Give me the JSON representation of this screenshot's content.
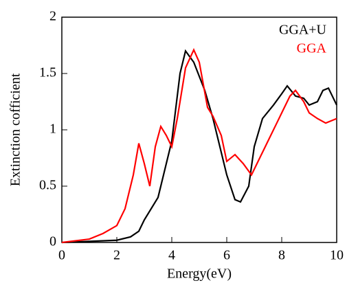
{
  "chart_data": {
    "type": "line",
    "xlabel": "Energy(eV)",
    "ylabel": "Extinction cofficient",
    "xlim": [
      0,
      10
    ],
    "ylim": [
      0,
      2
    ],
    "xticks": [
      0,
      2,
      4,
      6,
      8,
      10
    ],
    "yticks": [
      0,
      0.5,
      1,
      1.5,
      2
    ],
    "legend": "upper right",
    "series": [
      {
        "name": "GGA+U",
        "color": "#000000",
        "x": [
          0,
          1,
          2,
          2.5,
          2.8,
          3.0,
          3.5,
          4.0,
          4.3,
          4.5,
          4.8,
          5.2,
          5.5,
          6.0,
          6.3,
          6.5,
          6.8,
          7.0,
          7.3,
          7.7,
          8.0,
          8.2,
          8.5,
          8.8,
          9.0,
          9.3,
          9.5,
          9.7,
          10.0
        ],
        "values": [
          0,
          0.01,
          0.02,
          0.05,
          0.1,
          0.2,
          0.4,
          0.9,
          1.5,
          1.7,
          1.6,
          1.35,
          1.1,
          0.6,
          0.38,
          0.36,
          0.5,
          0.85,
          1.1,
          1.22,
          1.32,
          1.39,
          1.3,
          1.28,
          1.22,
          1.25,
          1.35,
          1.37,
          1.22
        ]
      },
      {
        "name": "GGA",
        "color": "#ff0000",
        "x": [
          0,
          1,
          1.5,
          2.0,
          2.3,
          2.6,
          2.8,
          3.0,
          3.2,
          3.4,
          3.6,
          3.8,
          4.0,
          4.2,
          4.5,
          4.8,
          5.0,
          5.3,
          5.5,
          5.8,
          6.0,
          6.3,
          6.6,
          6.9,
          7.2,
          7.5,
          7.8,
          8.0,
          8.3,
          8.5,
          8.8,
          9.0,
          9.3,
          9.6,
          10.0
        ],
        "values": [
          0,
          0.03,
          0.08,
          0.15,
          0.3,
          0.6,
          0.88,
          0.7,
          0.5,
          0.85,
          1.03,
          0.95,
          0.85,
          1.1,
          1.55,
          1.71,
          1.6,
          1.2,
          1.12,
          0.95,
          0.72,
          0.78,
          0.7,
          0.6,
          0.75,
          0.9,
          1.05,
          1.15,
          1.3,
          1.35,
          1.25,
          1.15,
          1.1,
          1.06,
          1.1
        ]
      }
    ]
  }
}
